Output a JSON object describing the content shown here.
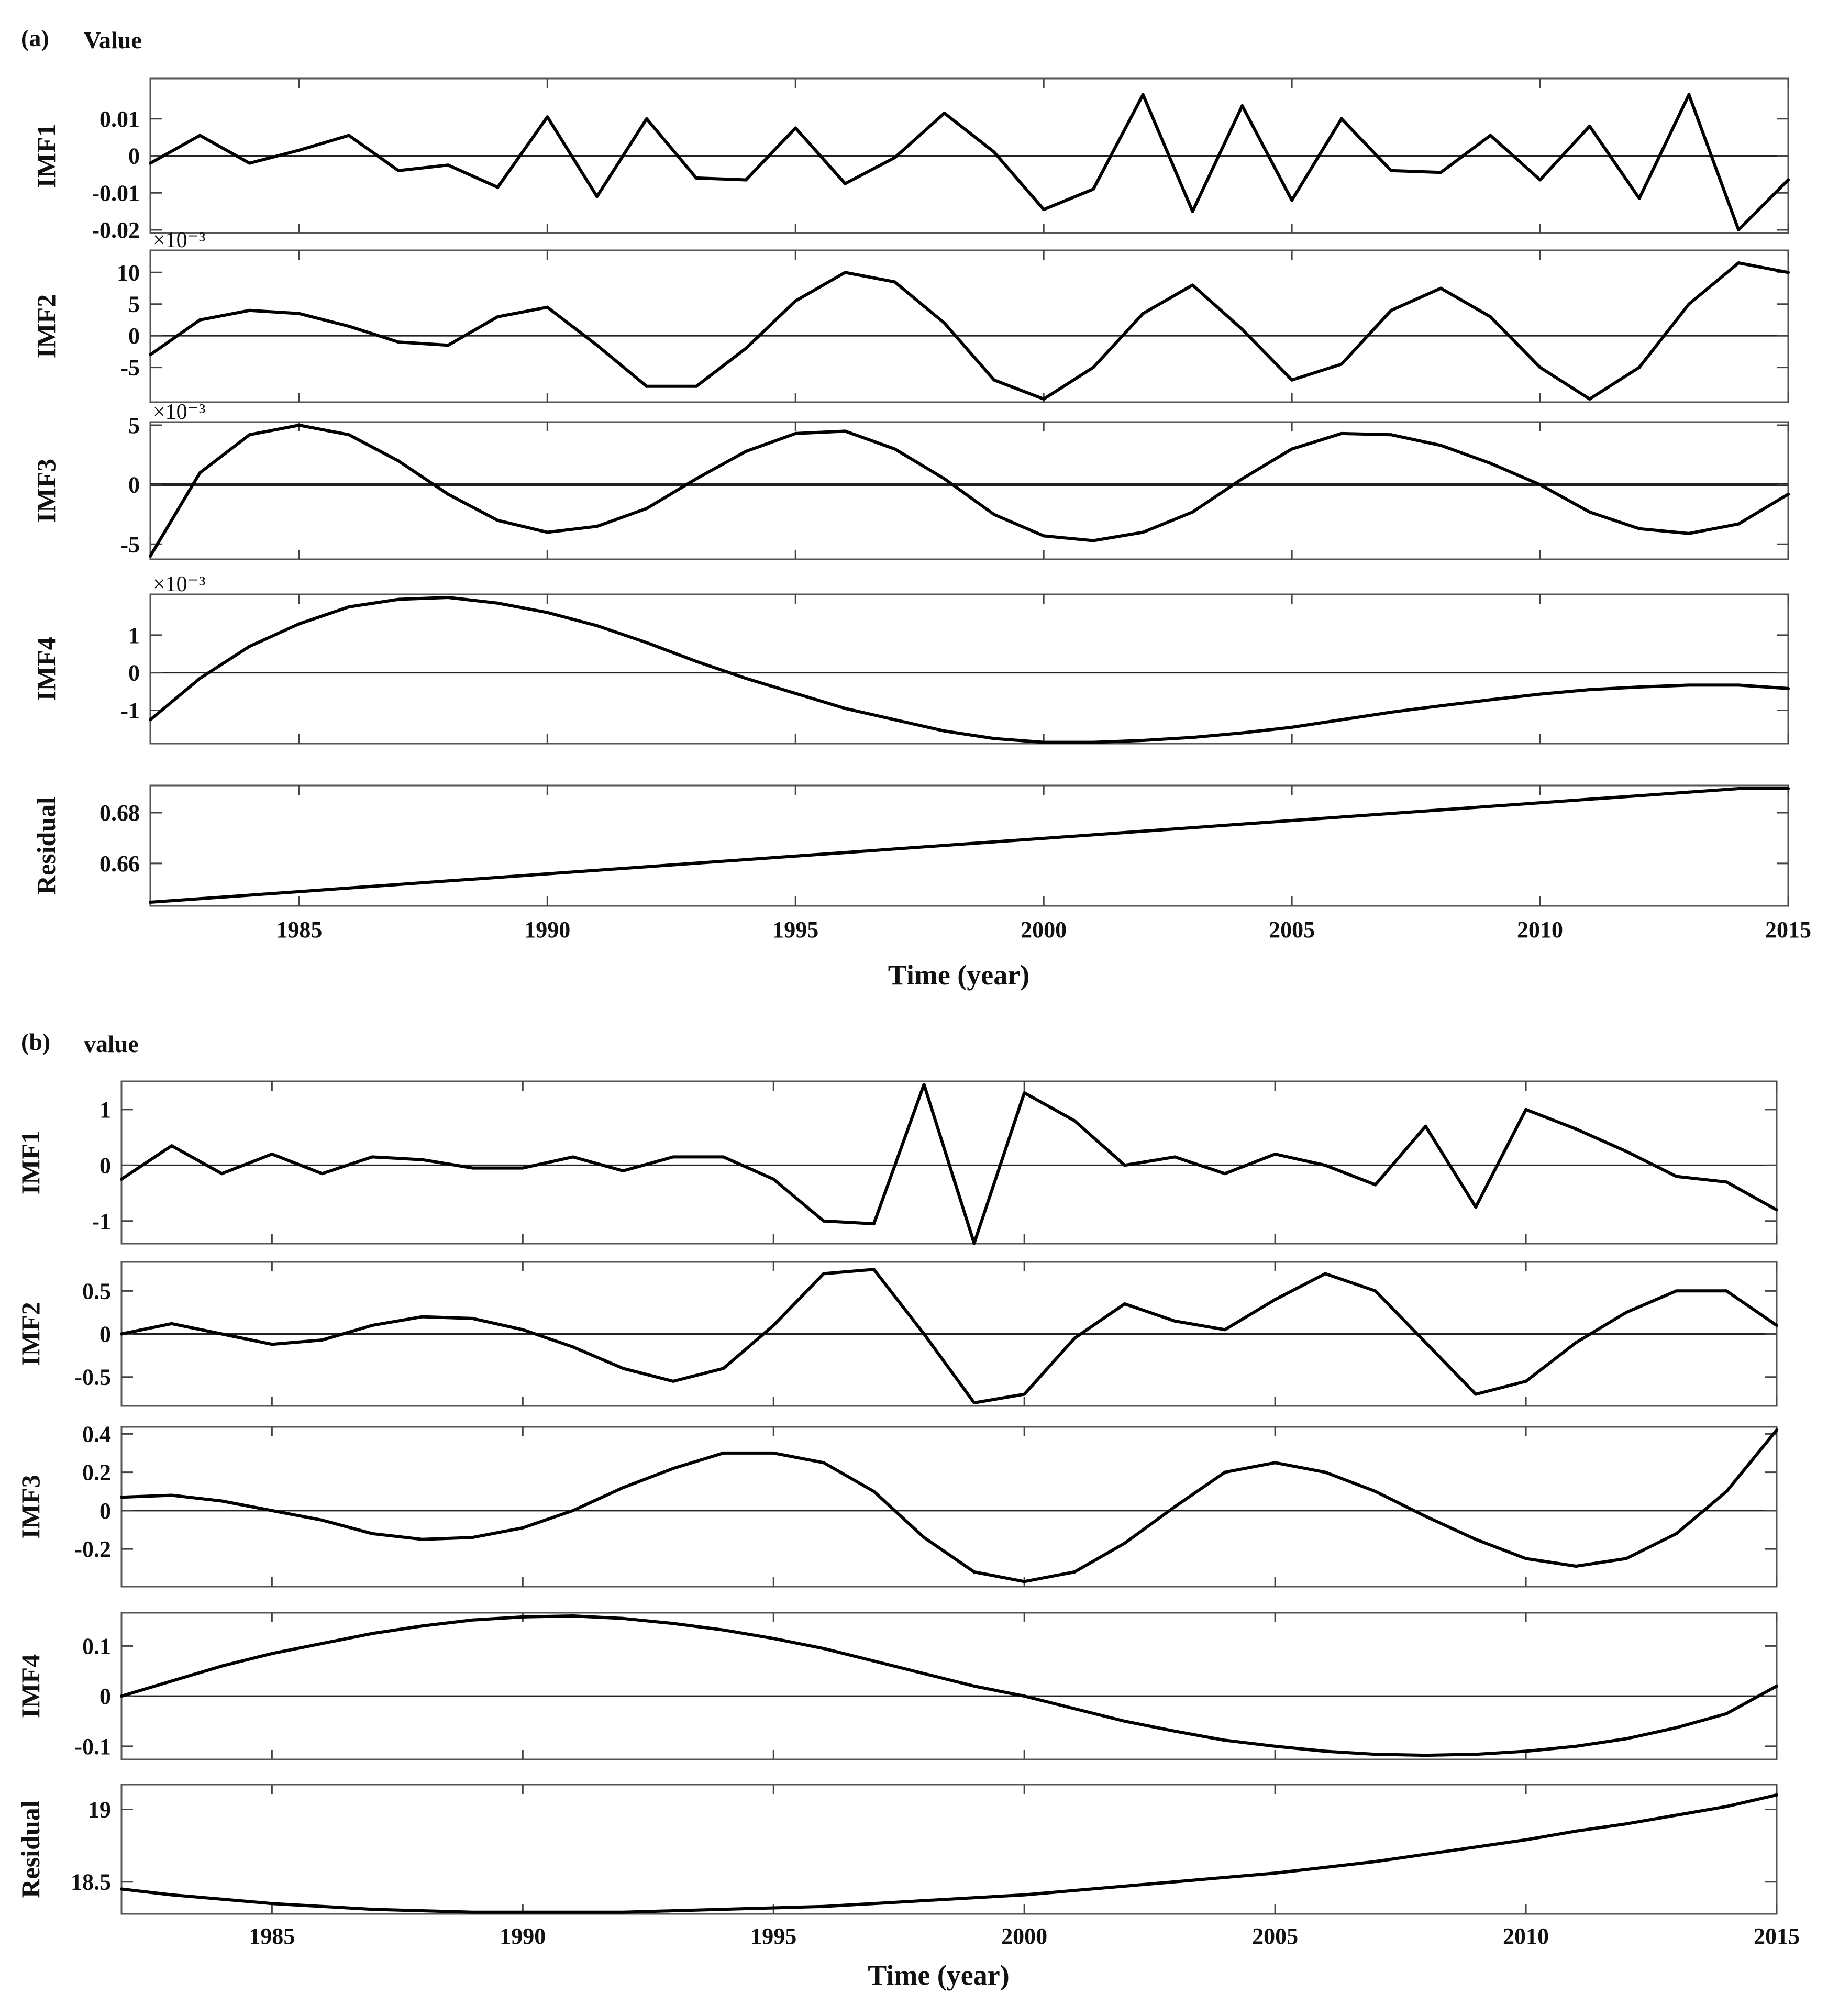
{
  "chart_data": [
    {
      "type": "line",
      "panel_label": "(a)",
      "title": "Value",
      "xlabel": "Time (year)",
      "x": [
        1982,
        1983,
        1984,
        1985,
        1986,
        1987,
        1988,
        1989,
        1990,
        1991,
        1992,
        1993,
        1994,
        1995,
        1996,
        1997,
        1998,
        1999,
        2000,
        2001,
        2002,
        2003,
        2004,
        2005,
        2006,
        2007,
        2008,
        2009,
        2010,
        2011,
        2012,
        2013,
        2014,
        2015
      ],
      "xlim": [
        1982,
        2015
      ],
      "xticks": [
        1985,
        1990,
        1995,
        2000,
        2005,
        2010,
        2015
      ],
      "xtick_labels": [
        "1985",
        "1990",
        "1995",
        "2000",
        "2005",
        "2010",
        "2015"
      ],
      "subplots": [
        {
          "ylabel": "IMF1",
          "ylim": [
            -0.02,
            0.02
          ],
          "yticks": [
            0.01,
            0,
            -0.01,
            -0.02
          ],
          "ytick_labels": [
            "0.01",
            "0",
            "-0.01",
            "-0.02"
          ],
          "exponent": "",
          "zero_line": true,
          "values": [
            -0.002,
            0.0055,
            -0.002,
            0.0015,
            0.0055,
            -0.004,
            -0.0025,
            -0.0085,
            0.0105,
            -0.011,
            0.01,
            -0.006,
            -0.0065,
            0.0075,
            -0.0075,
            -0.0005,
            0.0115,
            0.001,
            -0.0145,
            -0.009,
            0.0165,
            -0.015,
            0.0135,
            -0.012,
            0.01,
            -0.004,
            -0.0045,
            0.0055,
            -0.0065,
            0.008,
            -0.0115,
            0.0165,
            -0.02,
            -0.0065
          ]
        },
        {
          "ylabel": "IMF2",
          "ylim": [
            -10,
            13
          ],
          "yticks": [
            10,
            5,
            0,
            -5
          ],
          "ytick_labels": [
            "10",
            "5",
            "0",
            "-5"
          ],
          "exponent": "×10⁻³",
          "zero_line": true,
          "values": [
            -3,
            2.5,
            4,
            3.5,
            1.5,
            -1,
            -1.5,
            3,
            4.5,
            -1.5,
            -8,
            -8,
            -2,
            5.5,
            10,
            8.5,
            2,
            -7,
            -10,
            -5,
            3.5,
            8,
            1,
            -7,
            -4.5,
            4,
            7.5,
            3,
            -5,
            -10,
            -5,
            5,
            11.5,
            10
          ]
        },
        {
          "ylabel": "IMF3",
          "ylim": [
            -6,
            5
          ],
          "yticks": [
            5,
            0,
            -5
          ],
          "ytick_labels": [
            "5",
            "0",
            "-5"
          ],
          "exponent": "×10⁻³",
          "zero_line": true,
          "values": [
            -6,
            1,
            4.2,
            5,
            4.2,
            2,
            -0.8,
            -3,
            -4,
            -3.5,
            -2,
            0.5,
            2.8,
            4.3,
            4.5,
            3,
            0.5,
            -2.5,
            -4.3,
            -4.7,
            -4,
            -2.3,
            0.5,
            3,
            4.3,
            4.2,
            3.3,
            1.8,
            0,
            -2.3,
            -3.7,
            -4.1,
            -3.3,
            -0.8
          ]
        },
        {
          "ylabel": "IMF4",
          "ylim": [
            -1.8,
            2.0
          ],
          "yticks": [
            1,
            0,
            -1
          ],
          "ytick_labels": [
            "1",
            "0",
            "-1"
          ],
          "exponent": "×10⁻³",
          "zero_line": true,
          "values": [
            -1.25,
            -0.15,
            0.7,
            1.3,
            1.75,
            1.95,
            2.0,
            1.85,
            1.6,
            1.25,
            0.8,
            0.3,
            -0.15,
            -0.55,
            -0.95,
            -1.25,
            -1.55,
            -1.75,
            -1.85,
            -1.85,
            -1.8,
            -1.72,
            -1.6,
            -1.45,
            -1.25,
            -1.05,
            -0.88,
            -0.72,
            -0.57,
            -0.45,
            -0.38,
            -0.33,
            -0.33,
            -0.42
          ]
        },
        {
          "ylabel": "Residual",
          "ylim": [
            0.6445,
            0.6895
          ],
          "yticks": [
            0.68,
            0.66
          ],
          "ytick_labels": [
            "0.68",
            "0.66"
          ],
          "exponent": "",
          "zero_line": false,
          "values": [
            0.6447,
            0.6461,
            0.6475,
            0.6489,
            0.6503,
            0.6517,
            0.6531,
            0.6545,
            0.6559,
            0.6573,
            0.6587,
            0.6601,
            0.6615,
            0.6629,
            0.6643,
            0.6657,
            0.6671,
            0.6685,
            0.6699,
            0.6713,
            0.6727,
            0.6741,
            0.6755,
            0.6769,
            0.6783,
            0.6797,
            0.6811,
            0.6825,
            0.6839,
            0.6853,
            0.6867,
            0.6881,
            0.6895,
            0.6895
          ]
        }
      ]
    },
    {
      "type": "line",
      "panel_label": "(b)",
      "title": "value",
      "xlabel": "Time (year)",
      "x": [
        1982,
        1983,
        1984,
        1985,
        1986,
        1987,
        1988,
        1989,
        1990,
        1991,
        1992,
        1993,
        1994,
        1995,
        1996,
        1997,
        1998,
        1999,
        2000,
        2001,
        2002,
        2003,
        2004,
        2005,
        2006,
        2007,
        2008,
        2009,
        2010,
        2011,
        2012,
        2013,
        2014,
        2015
      ],
      "xlim": [
        1982,
        2015
      ],
      "xticks": [
        1985,
        1990,
        1995,
        2000,
        2005,
        2010,
        2015
      ],
      "xtick_labels": [
        "1985",
        "1990",
        "1995",
        "2000",
        "2005",
        "2010",
        "2015"
      ],
      "subplots": [
        {
          "ylabel": "IMF1",
          "ylim": [
            -1.35,
            1.45
          ],
          "yticks": [
            1,
            0,
            -1
          ],
          "ytick_labels": [
            "1",
            "0",
            "-1"
          ],
          "exponent": "",
          "zero_line": true,
          "values": [
            -0.25,
            0.35,
            -0.15,
            0.2,
            -0.15,
            0.15,
            0.1,
            -0.05,
            -0.05,
            0.15,
            -0.1,
            0.15,
            0.15,
            -0.25,
            -1.0,
            -1.05,
            1.45,
            -1.4,
            1.3,
            0.8,
            0.0,
            0.15,
            -0.15,
            0.2,
            0.0,
            -0.35,
            0.7,
            -0.75,
            1.0,
            0.65,
            0.25,
            -0.2,
            -0.3,
            -0.8
          ]
        },
        {
          "ylabel": "IMF2",
          "ylim": [
            -0.8,
            0.8
          ],
          "yticks": [
            0.5,
            0,
            -0.5
          ],
          "ytick_labels": [
            "0.5",
            "0",
            "-0.5"
          ],
          "exponent": "",
          "zero_line": true,
          "values": [
            0.0,
            0.12,
            0.0,
            -0.12,
            -0.07,
            0.1,
            0.2,
            0.18,
            0.05,
            -0.15,
            -0.4,
            -0.55,
            -0.4,
            0.1,
            0.7,
            0.75,
            0.0,
            -0.8,
            -0.7,
            -0.05,
            0.35,
            0.15,
            0.05,
            0.4,
            0.7,
            0.5,
            -0.1,
            -0.7,
            -0.55,
            -0.1,
            0.25,
            0.5,
            0.5,
            0.1
          ]
        },
        {
          "ylabel": "IMF3",
          "ylim": [
            -0.38,
            0.42
          ],
          "yticks": [
            0.4,
            0.2,
            0,
            -0.2
          ],
          "ytick_labels": [
            "0.4",
            "0.2",
            "0",
            "-0.2"
          ],
          "exponent": "",
          "zero_line": true,
          "values": [
            0.07,
            0.08,
            0.05,
            0.0,
            -0.05,
            -0.12,
            -0.15,
            -0.14,
            -0.09,
            0.0,
            0.12,
            0.22,
            0.3,
            0.3,
            0.25,
            0.1,
            -0.14,
            -0.32,
            -0.37,
            -0.32,
            -0.17,
            0.02,
            0.2,
            0.25,
            0.2,
            0.1,
            -0.03,
            -0.15,
            -0.25,
            -0.29,
            -0.25,
            -0.12,
            0.1,
            0.42
          ]
        },
        {
          "ylabel": "IMF4",
          "ylim": [
            -0.12,
            0.16
          ],
          "yticks": [
            0.1,
            0,
            -0.1
          ],
          "ytick_labels": [
            "0.1",
            "0",
            "-0.1"
          ],
          "exponent": "",
          "zero_line": true,
          "values": [
            0.0,
            0.03,
            0.06,
            0.085,
            0.105,
            0.125,
            0.14,
            0.152,
            0.158,
            0.16,
            0.155,
            0.145,
            0.132,
            0.115,
            0.095,
            0.07,
            0.045,
            0.02,
            0.0,
            -0.025,
            -0.05,
            -0.07,
            -0.088,
            -0.1,
            -0.11,
            -0.116,
            -0.118,
            -0.116,
            -0.11,
            -0.1,
            -0.085,
            -0.063,
            -0.035,
            0.02
          ]
        },
        {
          "ylabel": "Residual",
          "ylim": [
            18.3,
            19.15
          ],
          "yticks": [
            19,
            18.5
          ],
          "ytick_labels": [
            "19",
            "18.5"
          ],
          "exponent": "",
          "zero_line": false,
          "values": [
            18.45,
            18.41,
            18.38,
            18.35,
            18.33,
            18.31,
            18.3,
            18.29,
            18.29,
            18.29,
            18.29,
            18.3,
            18.31,
            18.32,
            18.33,
            18.35,
            18.37,
            18.39,
            18.41,
            18.44,
            18.47,
            18.5,
            18.53,
            18.56,
            18.6,
            18.64,
            18.69,
            18.74,
            18.79,
            18.85,
            18.9,
            18.96,
            19.02,
            19.1
          ]
        }
      ]
    }
  ]
}
